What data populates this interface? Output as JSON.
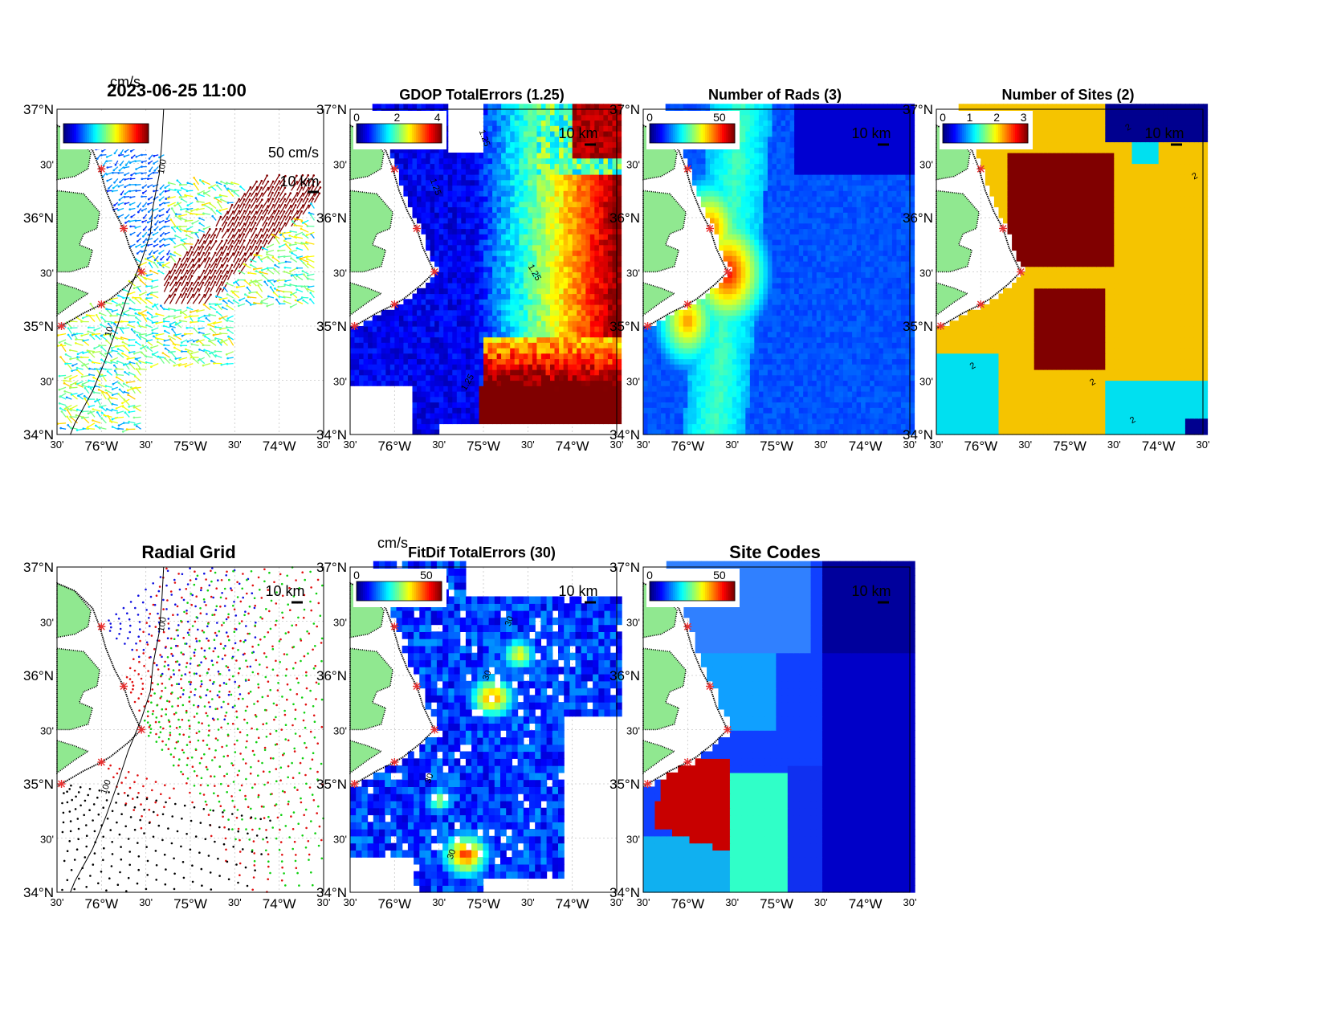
{
  "panels": {
    "p1": {
      "title": "2023-06-25 11:00",
      "cb_unit": "cm/s",
      "scale_arrow": "50 cm/s",
      "scale_km": "10 km",
      "contour_labels": [
        "100",
        "10"
      ]
    },
    "p2": {
      "title": "GDOP TotalErrors (1.25)",
      "cb_ticks": [
        "0",
        "2",
        "4"
      ],
      "scale_km": "10 km",
      "contour_labels": [
        "1.25",
        "1.25",
        "1.25",
        "1.25"
      ]
    },
    "p3": {
      "title": "Number of Rads (3)",
      "cb_ticks": [
        "0",
        "50"
      ],
      "scale_km": "10 km"
    },
    "p4": {
      "title": "Number of Sites (2)",
      "cb_ticks": [
        "0",
        "1",
        "2",
        "3"
      ],
      "scale_km": "10 km",
      "contour_labels": [
        "2",
        "2",
        "2",
        "2",
        "2"
      ]
    },
    "p5": {
      "title": "Radial Grid",
      "scale_km": "10 km",
      "contour_labels": [
        "100",
        "100"
      ]
    },
    "p6": {
      "title": "FitDif TotalErrors (30)",
      "cb_unit": "cm/s",
      "cb_ticks": [
        "0",
        "50"
      ],
      "scale_km": "10 km",
      "contour_labels": [
        "30",
        "30",
        "30",
        "30"
      ]
    },
    "p7": {
      "title": "Site Codes",
      "cb_ticks": [
        "0",
        "50"
      ],
      "scale_km": "10 km"
    }
  },
  "axes": {
    "lat_labels": [
      "37°N",
      "30'",
      "36°N",
      "30'",
      "35°N",
      "30'",
      "34°N"
    ],
    "lon_labels": [
      "30'",
      "76°W",
      "30'",
      "75°W",
      "30'",
      "74°W",
      "30'"
    ],
    "lat_range": [
      34,
      37
    ],
    "lon_range": [
      -76.5,
      -73.5
    ]
  },
  "colors": {
    "land": "#90e890",
    "site_marker": "#e83030",
    "jet_dark_red": "#800000",
    "yellow": "#f5c400",
    "cyan": "#00e0f0",
    "dark_blue": "#00008f"
  },
  "map_data": {
    "radar_sites_lonlat": [
      [
        -76.0,
        36.45
      ],
      [
        -75.75,
        35.9
      ],
      [
        -75.55,
        35.5
      ],
      [
        -76.0,
        35.2
      ],
      [
        -76.45,
        35.0
      ]
    ],
    "radial_grid_series_colors": [
      "blue",
      "red",
      "green",
      "black"
    ],
    "isobath": "100"
  }
}
